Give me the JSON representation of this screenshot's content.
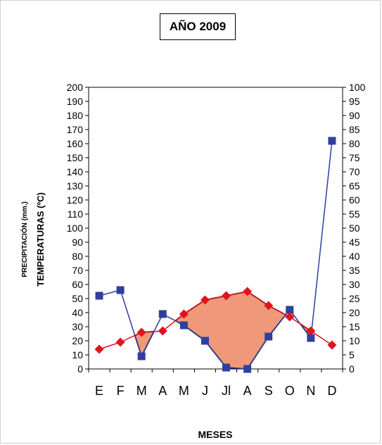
{
  "chart_data": {
    "type": "line",
    "title": "AÑO 2009",
    "categories": [
      "E",
      "F",
      "M",
      "A",
      "M",
      "J",
      "Jl",
      "A",
      "S",
      "O",
      "N",
      "D"
    ],
    "xlabel": "MESES",
    "ylabel_left_outer": "PRECIPITACIÓN (mm.)",
    "ylabel_left_inner": "TEMPERATURAS (ºC)",
    "y_left": {
      "min": 0,
      "max": 200,
      "step": 10,
      "ticks": [
        0,
        10,
        20,
        30,
        40,
        50,
        60,
        70,
        80,
        90,
        100,
        110,
        120,
        130,
        140,
        150,
        160,
        170,
        180,
        190,
        200
      ]
    },
    "y_right": {
      "min": 0,
      "max": 100,
      "step": 5,
      "ticks": [
        0,
        5,
        10,
        15,
        20,
        25,
        30,
        35,
        40,
        45,
        50,
        55,
        60,
        65,
        70,
        75,
        80,
        85,
        90,
        95,
        100
      ]
    },
    "series": [
      {
        "axis": "left",
        "marker": "square",
        "color": "#2e3f9e",
        "values": [
          52,
          56,
          9,
          39,
          31,
          20,
          1,
          0,
          23,
          42,
          22,
          162
        ]
      },
      {
        "axis": "right",
        "marker": "diamond",
        "color": "#e0141e",
        "values": [
          7,
          9.5,
          13,
          13.5,
          19.5,
          24.5,
          26,
          27.5,
          22.5,
          18.5,
          13.5,
          8.5
        ]
      }
    ],
    "arid_fill_color": "#f0987a",
    "grid": false,
    "legend": "none"
  }
}
